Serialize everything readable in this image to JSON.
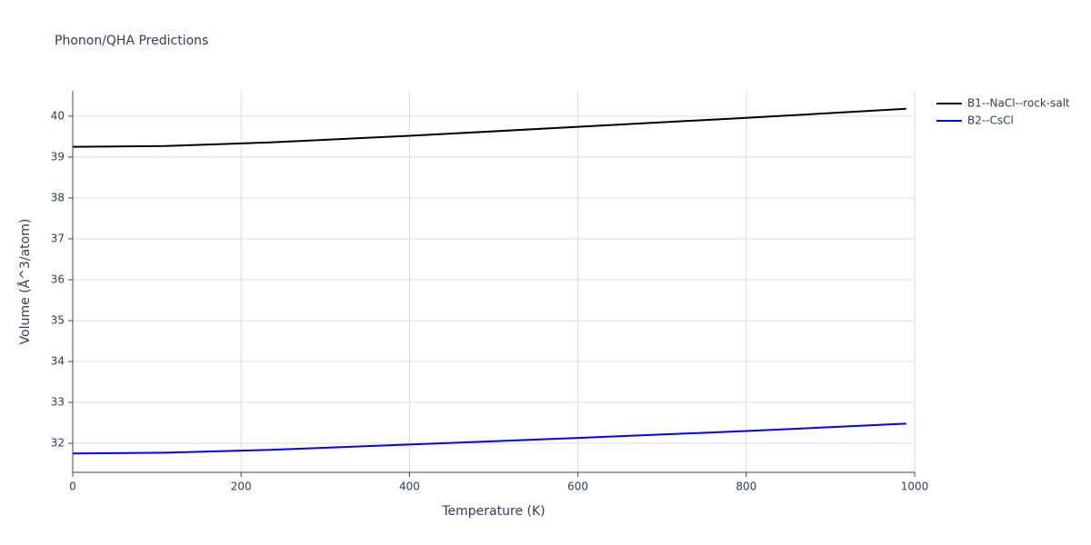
{
  "chart_data": {
    "type": "line",
    "title": "Phonon/QHA Predictions",
    "x_label": "Temperature (K)",
    "y_label": "Volume (Å^3/atom)",
    "x": [
      0,
      110,
      235,
      400,
      600,
      800,
      990
    ],
    "series": [
      {
        "name": "B1--NaCl--rock-salt",
        "color": "#000000",
        "values": [
          39.25,
          39.27,
          39.36,
          39.52,
          39.74,
          39.96,
          40.18
        ]
      },
      {
        "name": "B2--CsCl",
        "color": "#0000ff",
        "values": [
          31.75,
          31.77,
          31.84,
          31.97,
          32.13,
          32.3,
          32.48
        ]
      }
    ],
    "xlim": [
      0,
      1000
    ],
    "xticks": [
      0,
      200,
      400,
      600,
      800,
      1000
    ],
    "ylim": [
      31.29,
      40.62
    ],
    "yticks": [
      32,
      33,
      34,
      35,
      36,
      37,
      38,
      39,
      40
    ],
    "grid": true,
    "legend": "right"
  }
}
